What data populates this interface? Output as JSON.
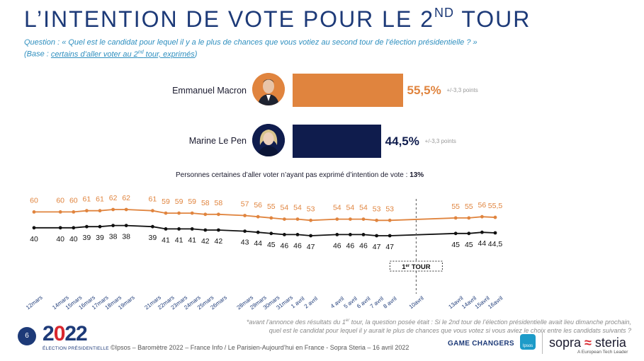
{
  "title": {
    "main": "L’INTENTION DE VOTE POUR LE 2",
    "sup": "ND",
    "end": " TOUR"
  },
  "question": {
    "line1": "Question : « Quel est le candidat pour lequel il y a le plus de chances que vous votiez au second tour de l’élection présidentielle ? »",
    "base_prefix": "(Base : ",
    "base_link_a": "certains d’aller voter au 2",
    "base_link_sup": "nd",
    "base_link_b": " tour, exprimés",
    "base_suffix": ")"
  },
  "candidates": [
    {
      "name": "Emmanuel Macron",
      "value": 55.5,
      "value_label": "55,5%",
      "margin": "+/-3,3 points",
      "color": "#e0843e"
    },
    {
      "name": "Marine Le Pen",
      "value": 44.5,
      "value_label": "44,5%",
      "margin": "+/-3,3 points",
      "color": "#0f1c4d"
    }
  ],
  "abstain_text": "Personnes certaines d’aller voter n’ayant pas exprimé d’intention de vote : ",
  "abstain_value": "13%",
  "chart_data": {
    "type": "line",
    "x": [
      "12mars",
      "14mars",
      "15mars",
      "16mars",
      "17mars",
      "18mars",
      "19mars",
      "21mars",
      "22mars",
      "23mars",
      "24mars",
      "25mars",
      "26mars",
      "28mars",
      "29mars",
      "30mars",
      "31mars",
      "1 avril",
      "2 avril",
      "4 avril",
      "5 avril",
      "6 avril",
      "7 avril",
      "8 avril",
      "10avril",
      "13avril",
      "14avril",
      "15avril",
      "16avril"
    ],
    "series": [
      {
        "name": "Emmanuel Macron",
        "color": "#e0843e",
        "values": [
          60,
          60,
          60,
          61,
          61,
          62,
          62,
          61,
          59,
          59,
          59,
          58,
          58,
          57,
          56,
          55,
          54,
          54,
          53,
          54,
          54,
          54,
          53,
          53,
          null,
          55,
          55,
          56,
          55.5
        ],
        "labels": [
          "60",
          "60",
          "60",
          "61",
          "61",
          "62",
          "62",
          "61",
          "59",
          "59",
          "59",
          "58",
          "58",
          "57",
          "56",
          "55",
          "54",
          "54",
          "53",
          "54",
          "54",
          "54",
          "53",
          "53",
          "",
          "55",
          "55",
          "56",
          "55,5"
        ]
      },
      {
        "name": "Marine Le Pen",
        "color": "#111111",
        "values": [
          40,
          40,
          40,
          39,
          39,
          38,
          38,
          39,
          41,
          41,
          41,
          42,
          42,
          43,
          44,
          45,
          46,
          46,
          47,
          46,
          46,
          46,
          47,
          47,
          null,
          45,
          45,
          44,
          44.5
        ],
        "labels": [
          "40",
          "40",
          "40",
          "39",
          "39",
          "38",
          "38",
          "39",
          "41",
          "41",
          "41",
          "42",
          "42",
          "43",
          "44",
          "45",
          "46",
          "46",
          "47",
          "46",
          "46",
          "46",
          "47",
          "47",
          "",
          "45",
          "45",
          "44",
          "44,5"
        ]
      }
    ],
    "annotation": {
      "label_main": "1",
      "label_sup": "er",
      "label_end": " TOUR",
      "at": "10avril"
    }
  },
  "footnote": {
    "line1_a": "*avant l’annonce des résultats du 1",
    "line1_sup": "er",
    "line1_b": " tour, la question posée était : Si le 2nd tour de l’élection présidentielle avait lieu dimanche prochain,",
    "line2": "quel est le candidat pour lequel il y aurait le plus de chances que vous votez si vous aviez le choix entre les candidats suivants ?"
  },
  "footer": {
    "page_number": "6",
    "logo_text_a": "2",
    "logo_text_b": "0",
    "logo_text_c": "22",
    "logo_sub": "ÉLECTION PRÉSIDENTIELLE",
    "credits": "©Ipsos – Baromètre 2022 – France Info / Le Parisien-Aujourd’hui en France - Sopra Steria – 16 avril 2022",
    "game_changers": "GAME CHANGERS",
    "ipsos": "Ipsos",
    "sopra_a": "sopra ",
    "sopra_s": "≈",
    "sopra_b": " steria",
    "sopra_tag": "A European Tech Leader"
  }
}
